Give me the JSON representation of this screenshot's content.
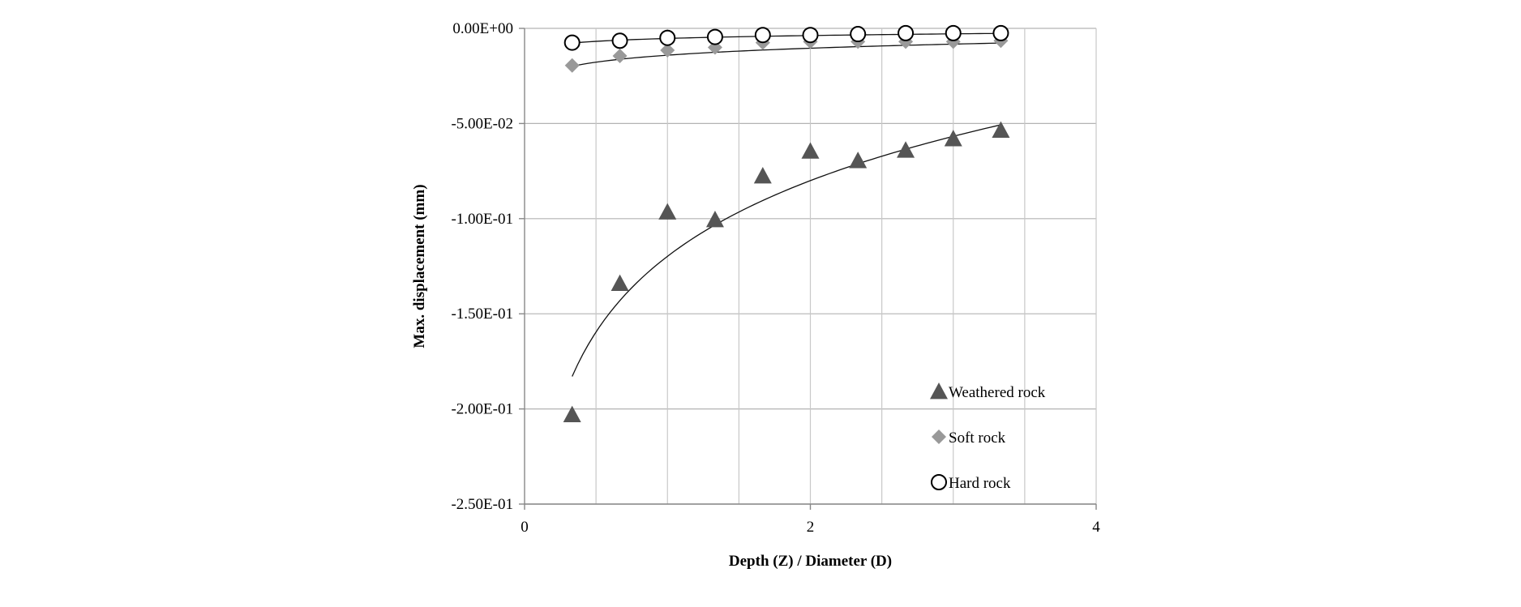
{
  "chart_data": {
    "type": "scatter",
    "title": "",
    "xlabel": "Depth (Z) / Diameter (D)",
    "ylabel": "Max. displacement (mm)",
    "xlim": [
      0,
      4
    ],
    "ylim": [
      -0.25,
      0
    ],
    "x_ticks": [
      0,
      2,
      4
    ],
    "x_tick_labels": [
      "0",
      "2",
      "4"
    ],
    "y_ticks": [
      0,
      -0.05,
      -0.1,
      -0.15,
      -0.2,
      -0.25
    ],
    "y_tick_labels": [
      "0.00E+00",
      "-5.00E-02",
      "-1.00E-01",
      "-1.50E-01",
      "-2.00E-01",
      "-2.50E-01"
    ],
    "grid": true,
    "legend_position": "bottom-right",
    "x": [
      0.333,
      0.667,
      1.0,
      1.333,
      1.667,
      2.0,
      2.333,
      2.667,
      3.0,
      3.333
    ],
    "series": [
      {
        "name": "Weathered rock",
        "marker": "triangle",
        "color": "#555555",
        "values": [
          -0.203,
          -0.134,
          -0.0965,
          -0.1005,
          -0.0775,
          -0.0645,
          -0.0695,
          -0.064,
          -0.058,
          -0.0535
        ],
        "trendline": {
          "type": "log",
          "a": -0.1198,
          "b": 0.0574
        }
      },
      {
        "name": "Soft rock",
        "marker": "diamond",
        "color": "#999999",
        "values": [
          -0.0195,
          -0.0145,
          -0.0115,
          -0.01,
          -0.0075,
          -0.007,
          -0.007,
          -0.007,
          -0.007,
          -0.0065
        ],
        "trendline": {
          "type": "log",
          "a": -0.0141,
          "b": 0.0053
        }
      },
      {
        "name": "Hard rock",
        "marker": "circle",
        "color": "#000000",
        "values": [
          -0.0075,
          -0.0065,
          -0.005,
          -0.0045,
          -0.0035,
          -0.0035,
          -0.003,
          -0.0025,
          -0.0025,
          -0.0025
        ],
        "trendline": {
          "type": "log",
          "a": -0.0053,
          "b": 0.0022
        }
      }
    ]
  }
}
